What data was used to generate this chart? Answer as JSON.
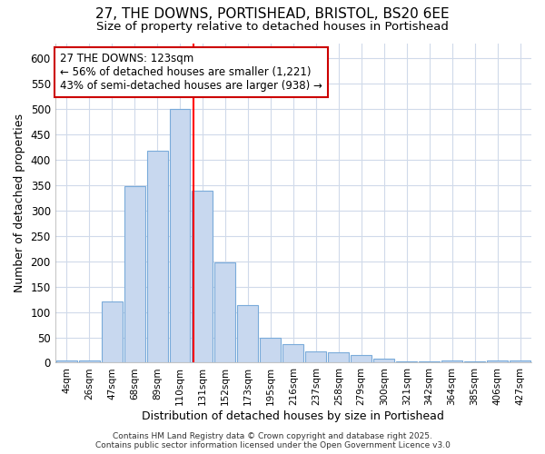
{
  "title_line1": "27, THE DOWNS, PORTISHEAD, BRISTOL, BS20 6EE",
  "title_line2": "Size of property relative to detached houses in Portishead",
  "xlabel": "Distribution of detached houses by size in Portishead",
  "ylabel": "Number of detached properties",
  "bar_labels": [
    "4sqm",
    "26sqm",
    "47sqm",
    "68sqm",
    "89sqm",
    "110sqm",
    "131sqm",
    "152sqm",
    "173sqm",
    "195sqm",
    "216sqm",
    "237sqm",
    "258sqm",
    "279sqm",
    "300sqm",
    "321sqm",
    "342sqm",
    "364sqm",
    "385sqm",
    "406sqm",
    "427sqm"
  ],
  "bar_values": [
    5,
    5,
    120,
    348,
    418,
    500,
    340,
    197,
    113,
    50,
    37,
    23,
    20,
    15,
    8,
    3,
    3,
    5,
    3,
    5,
    5
  ],
  "bar_color": "#c8d8ef",
  "bar_edge_color": "#7aabda",
  "red_line_x": 5.6,
  "annotation_line1": "27 THE DOWNS: 123sqm",
  "annotation_line2": "← 56% of detached houses are smaller (1,221)",
  "annotation_line3": "43% of semi-detached houses are larger (938) →",
  "annotation_box_color": "#ffffff",
  "annotation_box_edge": "#cc0000",
  "ylim_max": 630,
  "yticks": [
    0,
    50,
    100,
    150,
    200,
    250,
    300,
    350,
    400,
    450,
    500,
    550,
    600
  ],
  "footer_line1": "Contains HM Land Registry data © Crown copyright and database right 2025.",
  "footer_line2": "Contains public sector information licensed under the Open Government Licence v3.0",
  "bg_color": "#ffffff",
  "plot_bg_color": "#ffffff",
  "grid_color": "#d0daea"
}
